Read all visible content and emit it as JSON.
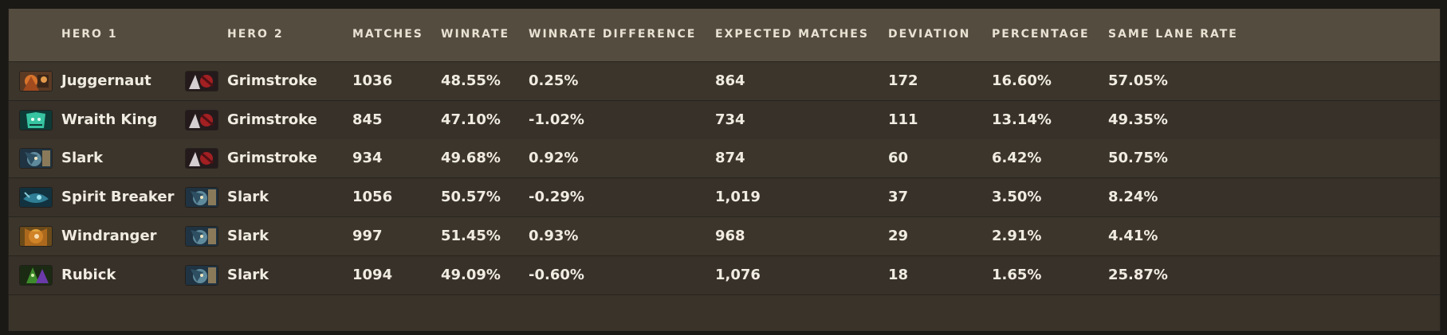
{
  "columns": {
    "hero1": "HERO 1",
    "hero2": "HERO 2",
    "matches": "MATCHES",
    "winrate": "WINRATE",
    "winrate_difference": "WINRATE DIFFERENCE",
    "expected_matches": "EXPECTED MATCHES",
    "deviation": "DEVIATION",
    "percentage": "PERCENTAGE",
    "same_lane_rate": "SAME LANE RATE"
  },
  "rows": [
    {
      "hero1": "Juggernaut",
      "hero1_icon": "juggernaut-portrait-icon",
      "hero2": "Grimstroke",
      "hero2_icon": "grimstroke-portrait-icon",
      "matches": "1036",
      "winrate": "48.55%",
      "winrate_difference": "0.25%",
      "expected_matches": "864",
      "deviation": "172",
      "percentage": "16.60%",
      "same_lane_rate": "57.05%"
    },
    {
      "hero1": "Wraith King",
      "hero1_icon": "wraith-king-portrait-icon",
      "hero2": "Grimstroke",
      "hero2_icon": "grimstroke-portrait-icon",
      "matches": "845",
      "winrate": "47.10%",
      "winrate_difference": "-1.02%",
      "expected_matches": "734",
      "deviation": "111",
      "percentage": "13.14%",
      "same_lane_rate": "49.35%"
    },
    {
      "hero1": "Slark",
      "hero1_icon": "slark-portrait-icon",
      "hero2": "Grimstroke",
      "hero2_icon": "grimstroke-portrait-icon",
      "matches": "934",
      "winrate": "49.68%",
      "winrate_difference": "0.92%",
      "expected_matches": "874",
      "deviation": "60",
      "percentage": "6.42%",
      "same_lane_rate": "50.75%"
    },
    {
      "hero1": "Spirit Breaker",
      "hero1_icon": "spirit-breaker-portrait-icon",
      "hero2": "Slark",
      "hero2_icon": "slark-portrait-icon",
      "matches": "1056",
      "winrate": "50.57%",
      "winrate_difference": "-0.29%",
      "expected_matches": "1,019",
      "deviation": "37",
      "percentage": "3.50%",
      "same_lane_rate": "8.24%"
    },
    {
      "hero1": "Windranger",
      "hero1_icon": "windranger-portrait-icon",
      "hero2": "Slark",
      "hero2_icon": "slark-portrait-icon",
      "matches": "997",
      "winrate": "51.45%",
      "winrate_difference": "0.93%",
      "expected_matches": "968",
      "deviation": "29",
      "percentage": "2.91%",
      "same_lane_rate": "4.41%"
    },
    {
      "hero1": "Rubick",
      "hero1_icon": "rubick-portrait-icon",
      "hero2": "Slark",
      "hero2_icon": "slark-portrait-icon",
      "matches": "1094",
      "winrate": "49.09%",
      "winrate_difference": "-0.60%",
      "expected_matches": "1,076",
      "deviation": "18",
      "percentage": "1.65%",
      "same_lane_rate": "25.87%"
    }
  ]
}
